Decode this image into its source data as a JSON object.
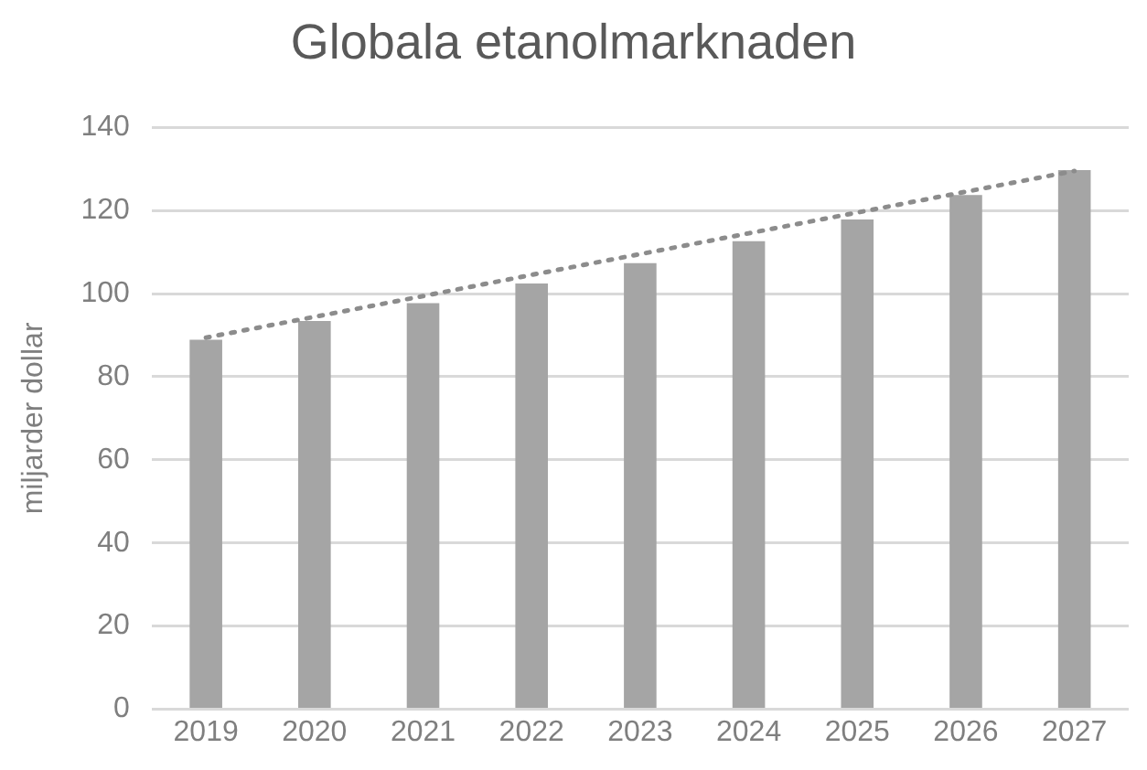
{
  "chart_data": {
    "type": "bar",
    "title": "Globala etanolmarknaden",
    "ylabel": "miljarder dollar",
    "categories": [
      "2019",
      "2020",
      "2021",
      "2022",
      "2023",
      "2024",
      "2025",
      "2026",
      "2027"
    ],
    "series": [
      {
        "color": "#a5a5a5",
        "values": [
          88.9,
          93.4,
          97.7,
          102.4,
          107.3,
          112.6,
          117.8,
          123.7,
          129.7
        ]
      },
      {
        "type": "line",
        "color": "#8c8c8c",
        "values": [
          89.4,
          94.4,
          99.4,
          104.5,
          109.5,
          114.5,
          119.5,
          124.5,
          129.5
        ],
        "line_style": "dotted",
        "marker": "none"
      }
    ],
    "ylim": [
      0,
      140
    ],
    "yticks": [
      0,
      20,
      40,
      60,
      80,
      100,
      120,
      140
    ],
    "grid": "y",
    "legend": false
  }
}
